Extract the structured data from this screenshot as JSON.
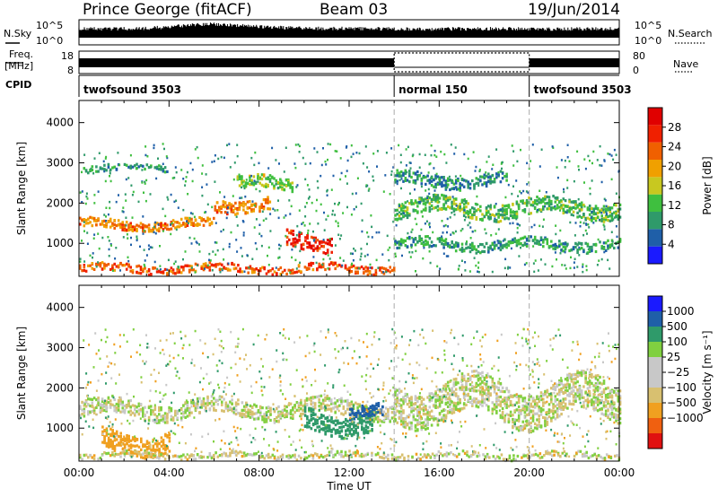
{
  "header": {
    "station": "Prince George (fitACF)",
    "beam": "Beam 03",
    "date": "19/Jun/2014"
  },
  "side_labels": {
    "nsky": "N.Sky",
    "nsearch": "N.Search",
    "freq_line1": "Freq.",
    "freq_line2": "[MHz]",
    "nave": "Nave",
    "cpid": "CPID"
  },
  "colors": {
    "power": [
      "#1a1aff",
      "#1f5fa8",
      "#2f9a6a",
      "#3fbf3f",
      "#c8c820",
      "#f0a000",
      "#f06000",
      "#f02000",
      "#e00000"
    ],
    "velocity": [
      "#e01010",
      "#f06010",
      "#f0a020",
      "#d8c070",
      "#c8c8c8",
      "#c8c8c8",
      "#80d040",
      "#2f9a6a",
      "#1f5fa8",
      "#1a1aff"
    ]
  },
  "chart_data": [
    {
      "type": "line",
      "name": "sky-noise-panel",
      "left_tick_labels": [
        "10^5",
        "10^0"
      ],
      "right_tick_labels": [
        "10^5",
        "10^0"
      ],
      "xlim_hours": [
        0,
        24
      ],
      "series": [
        {
          "values": [
            20,
            22,
            25,
            30,
            50,
            80,
            90,
            70,
            55,
            40,
            30,
            28,
            27,
            25,
            22,
            20,
            20,
            22,
            25,
            25,
            22,
            20,
            20,
            22,
            25
          ]
        }
      ]
    },
    {
      "type": "line",
      "name": "frequency-panel",
      "left_tick_labels": [
        "18",
        "8"
      ],
      "right_tick_labels": [
        "80",
        "0"
      ],
      "xlim_hours": [
        0,
        24
      ],
      "frequency_segments_hours": [
        [
          0,
          14
        ],
        [
          20,
          24
        ]
      ],
      "nave_box_hours": [
        14,
        20
      ]
    },
    {
      "type": "table",
      "name": "cpid-panel",
      "segments": [
        {
          "label": "twofsound 3503",
          "start": 0,
          "end": 14
        },
        {
          "label": "normal 150",
          "start": 14,
          "end": 20
        },
        {
          "label": "twofsound 3503",
          "start": 20,
          "end": 24
        }
      ]
    },
    {
      "type": "heatmap",
      "name": "power-panel",
      "ylabel": "Slant Range [km]",
      "yticks": [
        "1000",
        "2000",
        "3000",
        "4000"
      ],
      "ylim": [
        180,
        4550
      ],
      "xlim_hours": [
        0,
        24
      ],
      "colorbar": {
        "label": "Power [dB]",
        "ticks": [
          "4",
          "8",
          "12",
          "16",
          "20",
          "24",
          "28"
        ],
        "range": [
          0,
          32
        ]
      },
      "echo_bands": [
        {
          "t0": 0,
          "t1": 14,
          "range": 400,
          "width": 200,
          "value": 24
        },
        {
          "t0": 0,
          "t1": 6,
          "range": 1500,
          "width": 220,
          "value": 22
        },
        {
          "t0": 6,
          "t1": 8.5,
          "range": 2000,
          "width": 300,
          "value": 22
        },
        {
          "t0": 9.2,
          "t1": 11.2,
          "range": 1100,
          "width": 380,
          "value": 28
        },
        {
          "t0": 7,
          "t1": 9.5,
          "range": 2500,
          "width": 300,
          "value": 14
        },
        {
          "t0": 0,
          "t1": 4,
          "range": 2900,
          "width": 150,
          "value": 8
        },
        {
          "t0": 14,
          "t1": 24,
          "range": 1900,
          "width": 400,
          "value": 12
        },
        {
          "t0": 14,
          "t1": 24,
          "range": 1000,
          "width": 250,
          "value": 10
        },
        {
          "t0": 14,
          "t1": 19,
          "range": 2600,
          "width": 300,
          "value": 8
        }
      ]
    },
    {
      "type": "heatmap",
      "name": "velocity-panel",
      "ylabel": "Slant Range [km]",
      "yticks": [
        "1000",
        "2000",
        "3000",
        "4000"
      ],
      "ylim": [
        180,
        4550
      ],
      "xlim_hours": [
        0,
        24
      ],
      "xticks": [
        "00:00",
        "04:00",
        "08:00",
        "12:00",
        "16:00",
        "20:00",
        "00:00"
      ],
      "xlabel": "Time UT",
      "colorbar": {
        "label": "Velocity [m s⁻¹]",
        "ticks": [
          "1000",
          "500",
          "100",
          "25",
          "−25",
          "−100",
          "−500",
          "−1000"
        ]
      },
      "echo_bands": [
        {
          "t0": 0,
          "t1": 14,
          "range": 1500,
          "width": 400,
          "value": 0
        },
        {
          "t0": 1,
          "t1": 4,
          "range": 700,
          "width": 500,
          "value": -200
        },
        {
          "t0": 10,
          "t1": 13,
          "range": 1200,
          "width": 500,
          "value": 300
        },
        {
          "t0": 12,
          "t1": 13.5,
          "range": 1400,
          "width": 300,
          "value": 800
        },
        {
          "t0": 14,
          "t1": 24,
          "range": 1700,
          "width": 900,
          "value": 0
        },
        {
          "t0": 0,
          "t1": 24,
          "range": 350,
          "width": 150,
          "value": -20
        }
      ]
    }
  ]
}
